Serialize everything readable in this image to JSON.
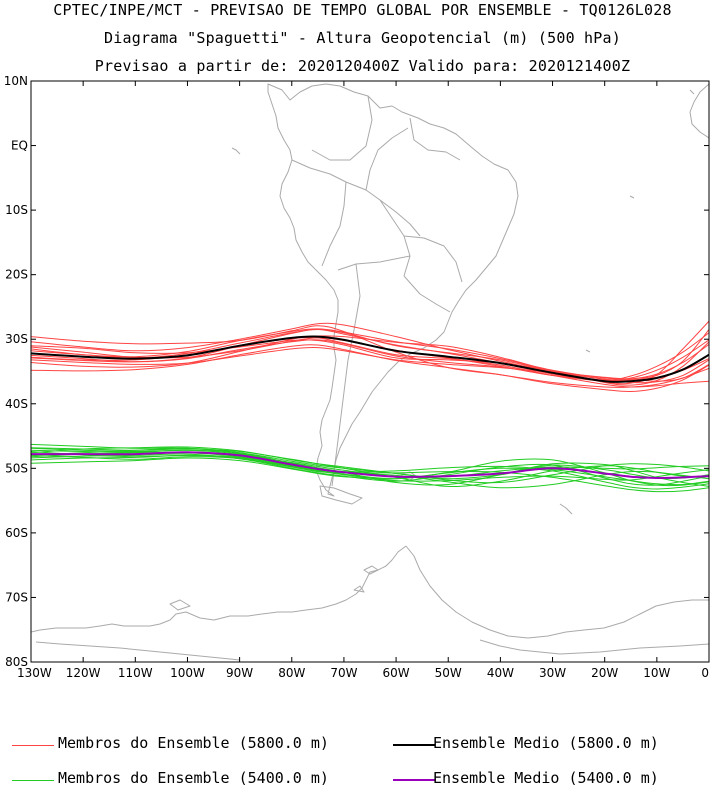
{
  "title": {
    "line1": "CPTEC/INPE/MCT - PREVISAO DE TEMPO GLOBAL POR ENSEMBLE - TQ0126L028",
    "line2": "Diagrama \"Spaguetti\" - Altura Geopotencial (m) (500 hPa)",
    "line3": "Previsao a partir de: 2020120400Z  Valido para: 2020121400Z"
  },
  "axes": {
    "lat_labels": [
      "10N",
      "EQ",
      "10S",
      "20S",
      "30S",
      "40S",
      "50S",
      "60S",
      "70S",
      "80S"
    ],
    "lon_labels": [
      "130W",
      "120W",
      "110W",
      "100W",
      "90W",
      "80W",
      "70W",
      "60W",
      "50W",
      "40W",
      "30W",
      "20W",
      "10W",
      "0"
    ],
    "lat_range": [
      -80,
      10
    ],
    "lon_range": [
      -130,
      0
    ]
  },
  "legend": {
    "members_5800": "Membros do Ensemble (5800.0 m)",
    "mean_5800": "Ensemble Medio (5800.0 m)",
    "members_5400": "Membros do Ensemble (5400.0 m)",
    "mean_5400": "Ensemble Medio (5400.0 m)"
  },
  "colors": {
    "members_5800": "#ff4444",
    "mean_5800": "#000000",
    "members_5400": "#22cc22",
    "mean_5400": "#9900bb",
    "coast": "#aaaaaa"
  },
  "chart_data": {
    "type": "line",
    "x": [
      -130,
      -120,
      -110,
      -100,
      -90,
      -80,
      -75,
      -70,
      -60,
      -50,
      -40,
      -30,
      -20,
      -15,
      -10,
      -5,
      0
    ],
    "series": [
      {
        "name": "Ensemble Medio (5800.0 m)",
        "values": [
          -32.2,
          -32.7,
          -33.0,
          -32.5,
          -31.0,
          -29.8,
          -29.6,
          -30.1,
          -31.8,
          -32.7,
          -33.7,
          -35.2,
          -36.5,
          -36.5,
          -36.0,
          -34.7,
          -32.4
        ]
      },
      {
        "name": "Ensemble Medio (5400.0 m)",
        "values": [
          -47.8,
          -47.8,
          -47.8,
          -47.5,
          -48.0,
          -49.4,
          -50.1,
          -50.6,
          -51.3,
          -51.2,
          -50.8,
          -50.0,
          -50.8,
          -51.3,
          -51.5,
          -51.4,
          -51.2
        ]
      }
    ],
    "members_5800": [
      [
        -31.5,
        -32.4,
        -32.9,
        -32.2,
        -30.6,
        -29.0,
        -28.5,
        -29.0,
        -31.0,
        -32.1,
        -33.2,
        -35.0,
        -36.6,
        -36.8,
        -35.5,
        -31.5,
        -27.2
      ],
      [
        -32.5,
        -33.0,
        -33.5,
        -33.0,
        -31.6,
        -30.4,
        -30.1,
        -30.7,
        -32.6,
        -33.6,
        -34.3,
        -35.6,
        -36.5,
        -36.2,
        -35.4,
        -33.6,
        -30.8
      ],
      [
        -29.6,
        -30.3,
        -30.7,
        -30.6,
        -30.2,
        -28.7,
        -27.9,
        -28.8,
        -32.0,
        -34.4,
        -35.5,
        -36.7,
        -37.4,
        -37.4,
        -37.0,
        -36.0,
        -34.5
      ],
      [
        -33.6,
        -34.2,
        -34.3,
        -33.7,
        -31.9,
        -30.0,
        -29.5,
        -29.6,
        -30.5,
        -31.1,
        -32.8,
        -34.9,
        -36.2,
        -36.3,
        -35.9,
        -34.8,
        -33.0
      ],
      [
        -31.0,
        -31.4,
        -32.1,
        -32.1,
        -31.2,
        -30.2,
        -30.2,
        -30.9,
        -32.9,
        -33.2,
        -33.7,
        -34.9,
        -36.7,
        -37.1,
        -36.4,
        -34.2,
        -30.4
      ],
      [
        -34.8,
        -34.9,
        -34.7,
        -33.9,
        -32.4,
        -31.1,
        -30.9,
        -31.6,
        -33.3,
        -34.4,
        -35.5,
        -36.9,
        -37.8,
        -38.1,
        -37.6,
        -36.3,
        -34.0
      ],
      [
        -32.9,
        -33.3,
        -33.5,
        -32.9,
        -31.0,
        -29.1,
        -28.5,
        -29.2,
        -30.9,
        -32.2,
        -33.7,
        -35.4,
        -36.3,
        -35.7,
        -34.2,
        -32.0,
        -29.0
      ],
      [
        -30.4,
        -31.2,
        -31.8,
        -31.3,
        -30.0,
        -28.4,
        -27.6,
        -27.8,
        -29.6,
        -31.6,
        -33.4,
        -35.0,
        -35.9,
        -36.2,
        -36.5,
        -36.0,
        -33.9
      ],
      [
        -33.2,
        -33.6,
        -33.9,
        -33.7,
        -32.6,
        -31.5,
        -31.3,
        -31.8,
        -33.2,
        -33.9,
        -34.4,
        -35.2,
        -36.2,
        -36.7,
        -36.6,
        -35.6,
        -33.2
      ],
      [
        -31.8,
        -32.4,
        -32.7,
        -31.9,
        -30.2,
        -28.8,
        -28.4,
        -28.9,
        -30.4,
        -31.5,
        -33.0,
        -34.8,
        -36.0,
        -36.1,
        -35.6,
        -33.4,
        -28.5
      ],
      [
        -32.8,
        -33.2,
        -33.2,
        -32.4,
        -31.0,
        -29.9,
        -29.8,
        -30.6,
        -32.4,
        -33.0,
        -34.0,
        -35.6,
        -37.0,
        -37.4,
        -37.2,
        -36.8,
        -36.5
      ],
      [
        -31.2,
        -32.0,
        -32.8,
        -32.8,
        -31.8,
        -30.3,
        -29.8,
        -30.2,
        -31.7,
        -32.9,
        -34.2,
        -35.6,
        -36.4,
        -36.0,
        -34.8,
        -32.8,
        -30.1
      ]
    ],
    "members_5400": [
      [
        -47.2,
        -47.4,
        -47.5,
        -47.2,
        -47.6,
        -48.9,
        -49.5,
        -50.0,
        -50.8,
        -51.6,
        -51.0,
        -49.5,
        -50.2,
        -50.9,
        -51.5,
        -51.5,
        -51.0
      ],
      [
        -48.4,
        -48.1,
        -48.0,
        -47.8,
        -48.5,
        -50.0,
        -50.7,
        -51.2,
        -52.0,
        -51.0,
        -49.8,
        -49.5,
        -51.5,
        -52.4,
        -52.6,
        -52.0,
        -51.2
      ],
      [
        -46.8,
        -47.0,
        -47.2,
        -47.0,
        -47.4,
        -48.6,
        -49.3,
        -50.0,
        -51.4,
        -52.8,
        -52.0,
        -50.4,
        -49.6,
        -49.9,
        -50.6,
        -51.2,
        -51.3
      ],
      [
        -49.2,
        -49.0,
        -48.8,
        -48.4,
        -48.8,
        -50.1,
        -50.8,
        -51.3,
        -51.6,
        -50.7,
        -50.0,
        -50.4,
        -52.1,
        -52.9,
        -53.2,
        -52.9,
        -52.4
      ],
      [
        -47.6,
        -47.0,
        -46.8,
        -46.7,
        -47.3,
        -48.7,
        -49.3,
        -49.8,
        -50.8,
        -51.8,
        -52.2,
        -51.0,
        -49.6,
        -49.3,
        -49.4,
        -49.8,
        -50.4
      ],
      [
        -46.3,
        -46.6,
        -46.9,
        -46.9,
        -47.7,
        -49.4,
        -50.3,
        -50.9,
        -51.6,
        -50.6,
        -48.9,
        -48.7,
        -50.7,
        -51.9,
        -52.6,
        -52.6,
        -52.1
      ],
      [
        -48.0,
        -48.3,
        -48.6,
        -48.2,
        -48.5,
        -49.8,
        -50.5,
        -50.7,
        -51.1,
        -52.1,
        -53.0,
        -52.5,
        -51.0,
        -50.5,
        -50.6,
        -51.1,
        -51.6
      ],
      [
        -47.9,
        -47.6,
        -47.2,
        -46.9,
        -47.6,
        -49.2,
        -49.9,
        -50.6,
        -52.2,
        -52.5,
        -51.0,
        -49.3,
        -49.4,
        -50.3,
        -51.4,
        -52.2,
        -52.8
      ],
      [
        -48.7,
        -48.4,
        -48.3,
        -48.0,
        -48.3,
        -49.5,
        -50.2,
        -50.6,
        -50.7,
        -50.5,
        -50.6,
        -51.4,
        -52.7,
        -53.3,
        -53.6,
        -53.5,
        -53.0
      ],
      [
        -46.9,
        -47.2,
        -47.4,
        -47.2,
        -47.8,
        -49.1,
        -49.7,
        -50.3,
        -51.3,
        -51.3,
        -50.4,
        -49.8,
        -50.0,
        -50.1,
        -49.9,
        -49.7,
        -49.6
      ],
      [
        -47.4,
        -47.9,
        -48.2,
        -48.0,
        -48.4,
        -49.7,
        -50.4,
        -51.0,
        -51.9,
        -51.9,
        -51.4,
        -51.2,
        -51.7,
        -51.8,
        -51.3,
        -50.7,
        -50.2
      ],
      [
        -48.2,
        -47.8,
        -47.6,
        -47.6,
        -48.2,
        -49.6,
        -50.2,
        -50.5,
        -50.4,
        -49.9,
        -49.7,
        -50.2,
        -51.3,
        -51.9,
        -52.4,
        -52.5,
        -52.0
      ]
    ]
  }
}
